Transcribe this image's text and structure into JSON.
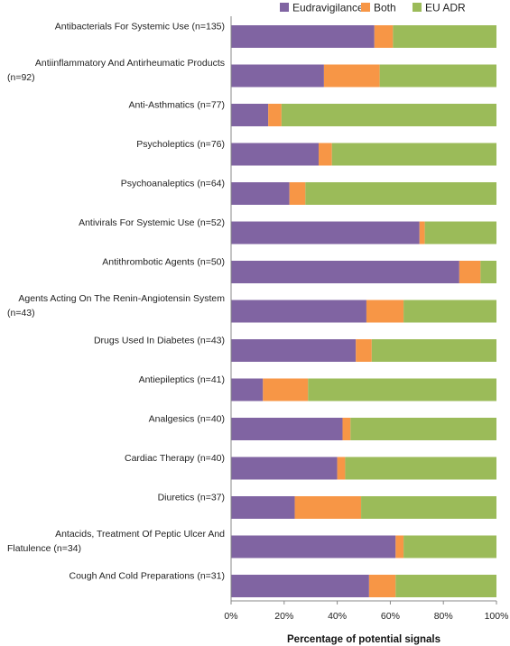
{
  "chart_data": {
    "type": "bar",
    "orientation": "horizontal",
    "stacked": true,
    "xlabel": "Percentage of potential signals",
    "xlim": [
      0,
      100
    ],
    "x_ticks": [
      "0%",
      "20%",
      "40%",
      "60%",
      "80%",
      "100%"
    ],
    "grid": false,
    "legend_position": "top",
    "categories": [
      [
        "Antibacterials For Systemic Use (n=135)"
      ],
      [
        "Antiinflammatory And Antirheumatic Products",
        "(n=92)"
      ],
      [
        "Anti-Asthmatics (n=77)"
      ],
      [
        "Psycholeptics (n=76)"
      ],
      [
        "Psychoanaleptics (n=64)"
      ],
      [
        "Antivirals For Systemic Use (n=52)"
      ],
      [
        "Antithrombotic Agents (n=50)"
      ],
      [
        "Agents Acting On The Renin-Angiotensin System",
        "(n=43)"
      ],
      [
        "Drugs Used In Diabetes (n=43)"
      ],
      [
        "Antiepileptics (n=41)"
      ],
      [
        "Analgesics (n=40)"
      ],
      [
        "Cardiac Therapy (n=40)"
      ],
      [
        "Diuretics (n=37)"
      ],
      [
        "Antacids, Treatment Of Peptic Ulcer And",
        "Flatulence (n=34)"
      ],
      [
        "Cough And Cold Preparations (n=31)"
      ]
    ],
    "series": [
      {
        "name": "Eudravigilance",
        "color": "#8064a2",
        "values": [
          54,
          35,
          14,
          33,
          22,
          71,
          86,
          51,
          47,
          12,
          42,
          40,
          24,
          62,
          52
        ]
      },
      {
        "name": "Both",
        "color": "#f79646",
        "values": [
          7,
          21,
          5,
          5,
          6,
          2,
          8,
          14,
          6,
          17,
          3,
          3,
          25,
          3,
          10
        ]
      },
      {
        "name": "EU ADR",
        "color": "#9bbb59",
        "values": [
          39,
          44,
          81,
          62,
          72,
          27,
          6,
          35,
          47,
          71,
          55,
          57,
          51,
          35,
          38
        ]
      }
    ]
  }
}
